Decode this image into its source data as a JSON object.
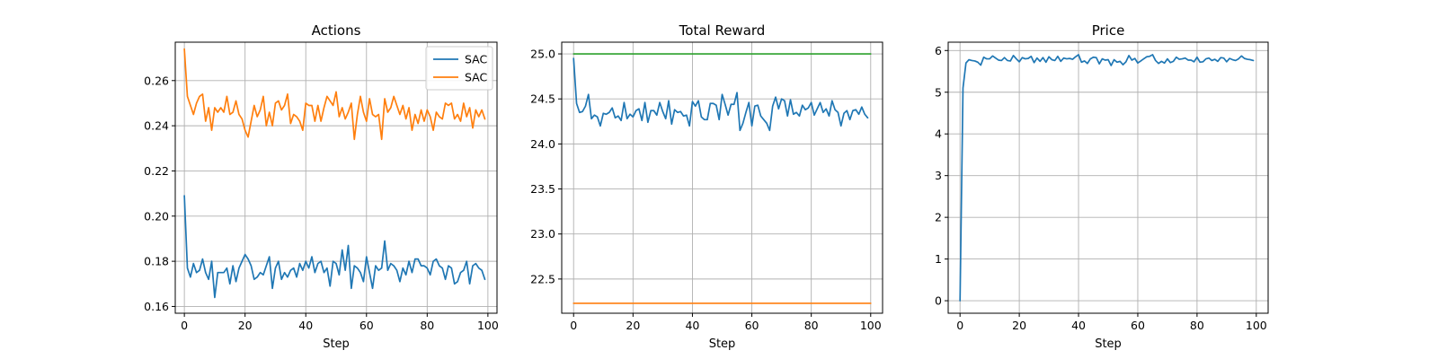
{
  "chart_data": [
    {
      "type": "line",
      "title": "Actions",
      "xlabel": "Step",
      "ylabel": "",
      "xlim": [
        -3,
        103
      ],
      "ylim": [
        0.157,
        0.277
      ],
      "xticks": [
        0,
        20,
        40,
        60,
        80,
        100
      ],
      "yticks": [
        0.16,
        0.18,
        0.2,
        0.22,
        0.24,
        0.26
      ],
      "ytick_labels": [
        "0.16",
        "0.18",
        "0.20",
        "0.22",
        "0.24",
        "0.26"
      ],
      "grid": true,
      "legend": "top-right",
      "series": [
        {
          "name": "SAC",
          "color": "#1f77b4",
          "x": [
            0,
            1,
            2,
            3,
            4,
            5,
            6,
            7,
            8,
            9,
            10,
            11,
            12,
            13,
            14,
            15,
            16,
            17,
            18,
            19,
            20,
            21,
            22,
            23,
            24,
            25,
            26,
            27,
            28,
            29,
            30,
            31,
            32,
            33,
            34,
            35,
            36,
            37,
            38,
            39,
            40,
            41,
            42,
            43,
            44,
            45,
            46,
            47,
            48,
            49,
            50,
            51,
            52,
            53,
            54,
            55,
            56,
            57,
            58,
            59,
            60,
            61,
            62,
            63,
            64,
            65,
            66,
            67,
            68,
            69,
            70,
            71,
            72,
            73,
            74,
            75,
            76,
            77,
            78,
            79,
            80,
            81,
            82,
            83,
            84,
            85,
            86,
            87,
            88,
            89,
            90,
            91,
            92,
            93,
            94,
            95,
            96,
            97,
            98,
            99
          ],
          "values": [
            0.209,
            0.177,
            0.173,
            0.179,
            0.175,
            0.176,
            0.181,
            0.175,
            0.172,
            0.18,
            0.164,
            0.175,
            0.175,
            0.175,
            0.177,
            0.17,
            0.178,
            0.171,
            0.177,
            0.18,
            0.183,
            0.181,
            0.178,
            0.172,
            0.173,
            0.175,
            0.174,
            0.178,
            0.182,
            0.168,
            0.177,
            0.18,
            0.172,
            0.175,
            0.173,
            0.176,
            0.177,
            0.173,
            0.179,
            0.176,
            0.18,
            0.177,
            0.182,
            0.175,
            0.179,
            0.18,
            0.175,
            0.177,
            0.169,
            0.18,
            0.179,
            0.174,
            0.185,
            0.176,
            0.187,
            0.168,
            0.178,
            0.177,
            0.175,
            0.171,
            0.182,
            0.175,
            0.168,
            0.178,
            0.176,
            0.177,
            0.189,
            0.176,
            0.179,
            0.178,
            0.176,
            0.171,
            0.177,
            0.174,
            0.18,
            0.175,
            0.181,
            0.181,
            0.178,
            0.178,
            0.177,
            0.174,
            0.18,
            0.181,
            0.178,
            0.177,
            0.172,
            0.178,
            0.177,
            0.17,
            0.171,
            0.175,
            0.176,
            0.18,
            0.17,
            0.178,
            0.179,
            0.177,
            0.176,
            0.172
          ]
        },
        {
          "name": "SAC",
          "color": "#ff7f0e",
          "x": [
            0,
            1,
            2,
            3,
            4,
            5,
            6,
            7,
            8,
            9,
            10,
            11,
            12,
            13,
            14,
            15,
            16,
            17,
            18,
            19,
            20,
            21,
            22,
            23,
            24,
            25,
            26,
            27,
            28,
            29,
            30,
            31,
            32,
            33,
            34,
            35,
            36,
            37,
            38,
            39,
            40,
            41,
            42,
            43,
            44,
            45,
            46,
            47,
            48,
            49,
            50,
            51,
            52,
            53,
            54,
            55,
            56,
            57,
            58,
            59,
            60,
            61,
            62,
            63,
            64,
            65,
            66,
            67,
            68,
            69,
            70,
            71,
            72,
            73,
            74,
            75,
            76,
            77,
            78,
            79,
            80,
            81,
            82,
            83,
            84,
            85,
            86,
            87,
            88,
            89,
            90,
            91,
            92,
            93,
            94,
            95,
            96,
            97,
            98,
            99
          ],
          "values": [
            0.274,
            0.253,
            0.249,
            0.245,
            0.25,
            0.253,
            0.254,
            0.242,
            0.248,
            0.238,
            0.248,
            0.246,
            0.248,
            0.246,
            0.253,
            0.245,
            0.246,
            0.251,
            0.245,
            0.243,
            0.238,
            0.235,
            0.242,
            0.249,
            0.244,
            0.247,
            0.253,
            0.24,
            0.246,
            0.24,
            0.25,
            0.251,
            0.247,
            0.249,
            0.254,
            0.241,
            0.245,
            0.244,
            0.242,
            0.238,
            0.25,
            0.249,
            0.249,
            0.242,
            0.249,
            0.242,
            0.248,
            0.253,
            0.251,
            0.249,
            0.255,
            0.244,
            0.248,
            0.243,
            0.246,
            0.25,
            0.234,
            0.245,
            0.253,
            0.246,
            0.242,
            0.252,
            0.245,
            0.244,
            0.245,
            0.234,
            0.252,
            0.246,
            0.248,
            0.253,
            0.249,
            0.245,
            0.249,
            0.243,
            0.248,
            0.238,
            0.245,
            0.241,
            0.247,
            0.242,
            0.247,
            0.244,
            0.238,
            0.246,
            0.244,
            0.243,
            0.25,
            0.249,
            0.25,
            0.243,
            0.245,
            0.242,
            0.25,
            0.244,
            0.248,
            0.239,
            0.247,
            0.244,
            0.247,
            0.243
          ]
        }
      ]
    },
    {
      "type": "line",
      "title": "Total Reward",
      "xlabel": "Step",
      "ylabel": "",
      "xlim": [
        -4,
        104
      ],
      "ylim": [
        22.12,
        25.13
      ],
      "xticks": [
        0,
        20,
        40,
        60,
        80,
        100
      ],
      "yticks": [
        22.5,
        23.0,
        23.5,
        24.0,
        24.5,
        25.0
      ],
      "ytick_labels": [
        "22.5",
        "23.0",
        "23.5",
        "24.0",
        "24.5",
        "25.0"
      ],
      "grid": true,
      "legend": "none",
      "series": [
        {
          "name": "",
          "color": "#1f77b4",
          "x": [
            0,
            1,
            2,
            3,
            4,
            5,
            6,
            7,
            8,
            9,
            10,
            11,
            12,
            13,
            14,
            15,
            16,
            17,
            18,
            19,
            20,
            21,
            22,
            23,
            24,
            25,
            26,
            27,
            28,
            29,
            30,
            31,
            32,
            33,
            34,
            35,
            36,
            37,
            38,
            39,
            40,
            41,
            42,
            43,
            44,
            45,
            46,
            47,
            48,
            49,
            50,
            51,
            52,
            53,
            54,
            55,
            56,
            57,
            58,
            59,
            60,
            61,
            62,
            63,
            64,
            65,
            66,
            67,
            68,
            69,
            70,
            71,
            72,
            73,
            74,
            75,
            76,
            77,
            78,
            79,
            80,
            81,
            82,
            83,
            84,
            85,
            86,
            87,
            88,
            89,
            90,
            91,
            92,
            93,
            94,
            95,
            96,
            97,
            98,
            99
          ],
          "values": [
            24.95,
            24.45,
            24.35,
            24.36,
            24.42,
            24.55,
            24.28,
            24.32,
            24.3,
            24.2,
            24.34,
            24.33,
            24.35,
            24.4,
            24.29,
            24.31,
            24.26,
            24.46,
            24.28,
            24.33,
            24.3,
            24.37,
            24.39,
            24.26,
            24.46,
            24.24,
            24.37,
            24.37,
            24.32,
            24.46,
            24.36,
            24.28,
            24.48,
            24.22,
            24.38,
            24.35,
            24.36,
            24.31,
            24.32,
            24.2,
            24.47,
            24.42,
            24.48,
            24.3,
            24.27,
            24.27,
            24.45,
            24.45,
            24.43,
            24.27,
            24.55,
            24.44,
            24.32,
            24.44,
            24.44,
            24.57,
            24.15,
            24.23,
            24.35,
            24.46,
            24.2,
            24.42,
            24.43,
            24.31,
            24.27,
            24.23,
            24.15,
            24.42,
            24.52,
            24.39,
            24.5,
            24.48,
            24.31,
            24.49,
            24.33,
            24.35,
            24.31,
            24.43,
            24.38,
            24.4,
            24.46,
            24.32,
            24.39,
            24.46,
            24.35,
            24.39,
            24.31,
            24.48,
            24.38,
            24.35,
            24.2,
            24.34,
            24.37,
            24.27,
            24.37,
            24.38,
            24.33,
            24.41,
            24.33,
            24.29
          ]
        },
        {
          "name": "",
          "color": "#2ca02c",
          "x": [
            0,
            100
          ],
          "values": [
            25.0,
            25.0
          ]
        },
        {
          "name": "",
          "color": "#ff7f0e",
          "x": [
            0,
            100
          ],
          "values": [
            22.23,
            22.23
          ]
        }
      ]
    },
    {
      "type": "line",
      "title": "Price",
      "xlabel": "Step",
      "ylabel": "",
      "xlim": [
        -4,
        104
      ],
      "ylim": [
        -0.3,
        6.2
      ],
      "xticks": [
        0,
        20,
        40,
        60,
        80,
        100
      ],
      "yticks": [
        0,
        1,
        2,
        3,
        4,
        5,
        6
      ],
      "ytick_labels": [
        "0",
        "1",
        "2",
        "3",
        "4",
        "5",
        "6"
      ],
      "grid": true,
      "legend": "none",
      "series": [
        {
          "name": "",
          "color": "#1f77b4",
          "x": [
            0,
            1,
            2,
            3,
            4,
            5,
            6,
            7,
            8,
            9,
            10,
            11,
            12,
            13,
            14,
            15,
            16,
            17,
            18,
            19,
            20,
            21,
            22,
            23,
            24,
            25,
            26,
            27,
            28,
            29,
            30,
            31,
            32,
            33,
            34,
            35,
            36,
            37,
            38,
            39,
            40,
            41,
            42,
            43,
            44,
            45,
            46,
            47,
            48,
            49,
            50,
            51,
            52,
            53,
            54,
            55,
            56,
            57,
            58,
            59,
            60,
            61,
            62,
            63,
            64,
            65,
            66,
            67,
            68,
            69,
            70,
            71,
            72,
            73,
            74,
            75,
            76,
            77,
            78,
            79,
            80,
            81,
            82,
            83,
            84,
            85,
            86,
            87,
            88,
            89,
            90,
            91,
            92,
            93,
            94,
            95,
            96,
            97,
            98,
            99
          ],
          "values": [
            0.0,
            5.1,
            5.7,
            5.78,
            5.76,
            5.75,
            5.72,
            5.65,
            5.84,
            5.8,
            5.8,
            5.87,
            5.82,
            5.77,
            5.76,
            5.83,
            5.76,
            5.75,
            5.88,
            5.8,
            5.73,
            5.83,
            5.8,
            5.81,
            5.86,
            5.71,
            5.82,
            5.74,
            5.83,
            5.72,
            5.85,
            5.78,
            5.76,
            5.86,
            5.74,
            5.82,
            5.8,
            5.81,
            5.79,
            5.85,
            5.9,
            5.72,
            5.75,
            5.69,
            5.8,
            5.84,
            5.83,
            5.68,
            5.8,
            5.77,
            5.78,
            5.64,
            5.78,
            5.72,
            5.74,
            5.66,
            5.73,
            5.88,
            5.77,
            5.81,
            5.7,
            5.75,
            5.8,
            5.85,
            5.86,
            5.9,
            5.76,
            5.69,
            5.74,
            5.7,
            5.8,
            5.71,
            5.74,
            5.84,
            5.79,
            5.8,
            5.82,
            5.77,
            5.77,
            5.73,
            5.84,
            5.72,
            5.73,
            5.8,
            5.82,
            5.76,
            5.79,
            5.74,
            5.83,
            5.82,
            5.73,
            5.81,
            5.78,
            5.76,
            5.8,
            5.87,
            5.81,
            5.79,
            5.78,
            5.76
          ]
        }
      ]
    }
  ]
}
